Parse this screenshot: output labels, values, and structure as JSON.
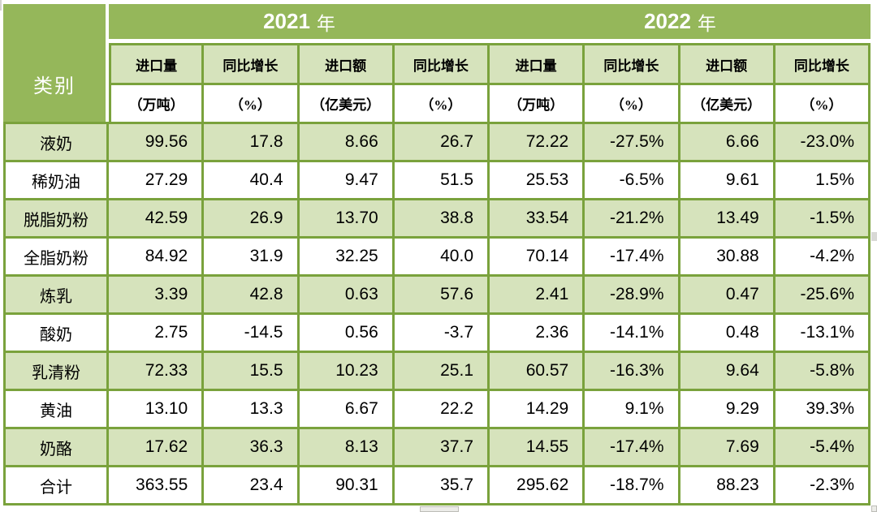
{
  "colors": {
    "header_green": "#95B75A",
    "row_green": "#D6E3BC",
    "border_green": "#7AA23C"
  },
  "table": {
    "header": {
      "category_label": "类别",
      "years": [
        {
          "num": "2021",
          "suffix": "年"
        },
        {
          "num": "2022",
          "suffix": "年"
        }
      ],
      "columns": [
        "进口量",
        "同比增长",
        "进口额",
        "同比增长",
        "进口量",
        "同比增长",
        "进口额",
        "同比增长"
      ],
      "units": [
        "（万吨）",
        "（%）",
        "（亿美元）",
        "（%）",
        "（万吨）",
        "（%）",
        "（亿美元）",
        "（%）"
      ]
    },
    "rows": [
      {
        "category": "液奶",
        "values": [
          "99.56",
          "17.8",
          "8.66",
          "26.7",
          "72.22",
          "-27.5%",
          "6.66",
          "-23.0%"
        ]
      },
      {
        "category": "稀奶油",
        "values": [
          "27.29",
          "40.4",
          "9.47",
          "51.5",
          "25.53",
          "-6.5%",
          "9.61",
          "1.5%"
        ]
      },
      {
        "category": "脱脂奶粉",
        "values": [
          "42.59",
          "26.9",
          "13.70",
          "38.8",
          "33.54",
          "-21.2%",
          "13.49",
          "-1.5%"
        ]
      },
      {
        "category": "全脂奶粉",
        "values": [
          "84.92",
          "31.9",
          "32.25",
          "40.0",
          "70.14",
          "-17.4%",
          "30.88",
          "-4.2%"
        ]
      },
      {
        "category": "炼乳",
        "values": [
          "3.39",
          "42.8",
          "0.63",
          "57.6",
          "2.41",
          "-28.9%",
          "0.47",
          "-25.6%"
        ]
      },
      {
        "category": "酸奶",
        "values": [
          "2.75",
          "-14.5",
          "0.56",
          "-3.7",
          "2.36",
          "-14.1%",
          "0.48",
          "-13.1%"
        ]
      },
      {
        "category": "乳清粉",
        "values": [
          "72.33",
          "15.5",
          "10.23",
          "25.1",
          "60.57",
          "-16.3%",
          "9.64",
          "-5.8%"
        ]
      },
      {
        "category": "黄油",
        "values": [
          "13.10",
          "13.3",
          "6.67",
          "22.2",
          "14.29",
          "9.1%",
          "9.29",
          "39.3%"
        ]
      },
      {
        "category": "奶酪",
        "values": [
          "17.62",
          "36.3",
          "8.13",
          "37.7",
          "14.55",
          "-17.4%",
          "7.69",
          "-5.4%"
        ]
      },
      {
        "category": "合计",
        "values": [
          "363.55",
          "23.4",
          "90.31",
          "35.7",
          "295.62",
          "-18.7%",
          "88.23",
          "-2.3%"
        ]
      }
    ]
  }
}
